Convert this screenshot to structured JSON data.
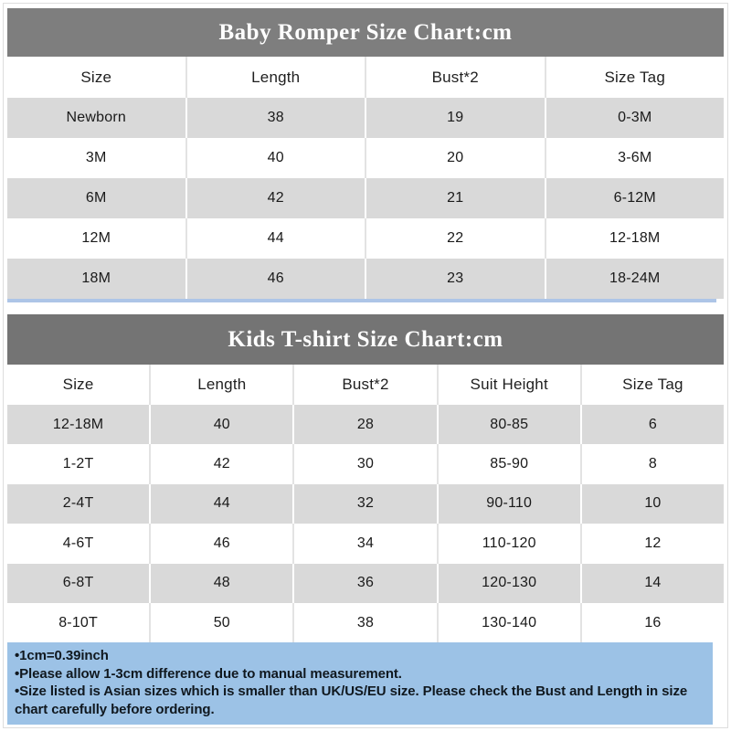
{
  "colors": {
    "romper_title_bg": "#7e7e7e",
    "tshirt_title_bg": "#747474",
    "row_stripe_bg": "#d9d9d9",
    "divider_blue": "#adc5e7",
    "notes_bg": "#9cc2e6",
    "title_text": "#ffffff",
    "body_text": "#1a1a1a"
  },
  "chart_data": [
    {
      "type": "table",
      "title": "Baby Romper Size Chart:cm",
      "columns": [
        "Size",
        "Length",
        "Bust*2",
        "Size Tag"
      ],
      "rows": [
        [
          "Newborn",
          "38",
          "19",
          "0-3M"
        ],
        [
          "3M",
          "40",
          "20",
          "3-6M"
        ],
        [
          "6M",
          "42",
          "21",
          "6-12M"
        ],
        [
          "12M",
          "44",
          "22",
          "12-18M"
        ],
        [
          "18M",
          "46",
          "23",
          "18-24M"
        ]
      ]
    },
    {
      "type": "table",
      "title": "Kids T-shirt Size Chart:cm",
      "columns": [
        "Size",
        "Length",
        "Bust*2",
        "Suit Height",
        "Size Tag"
      ],
      "rows": [
        [
          "12-18M",
          "40",
          "28",
          "80-85",
          "6"
        ],
        [
          "1-2T",
          "42",
          "30",
          "85-90",
          "8"
        ],
        [
          "2-4T",
          "44",
          "32",
          "90-110",
          "10"
        ],
        [
          "4-6T",
          "46",
          "34",
          "110-120",
          "12"
        ],
        [
          "6-8T",
          "48",
          "36",
          "120-130",
          "14"
        ],
        [
          "8-10T",
          "50",
          "38",
          "130-140",
          "16"
        ]
      ]
    }
  ],
  "notes": [
    "•1cm=0.39inch",
    "•Please allow 1-3cm difference due to manual measurement.",
    "•Size listed is Asian sizes which is smaller than UK/US/EU size. Please check the Bust and Length in size chart carefully before ordering."
  ]
}
